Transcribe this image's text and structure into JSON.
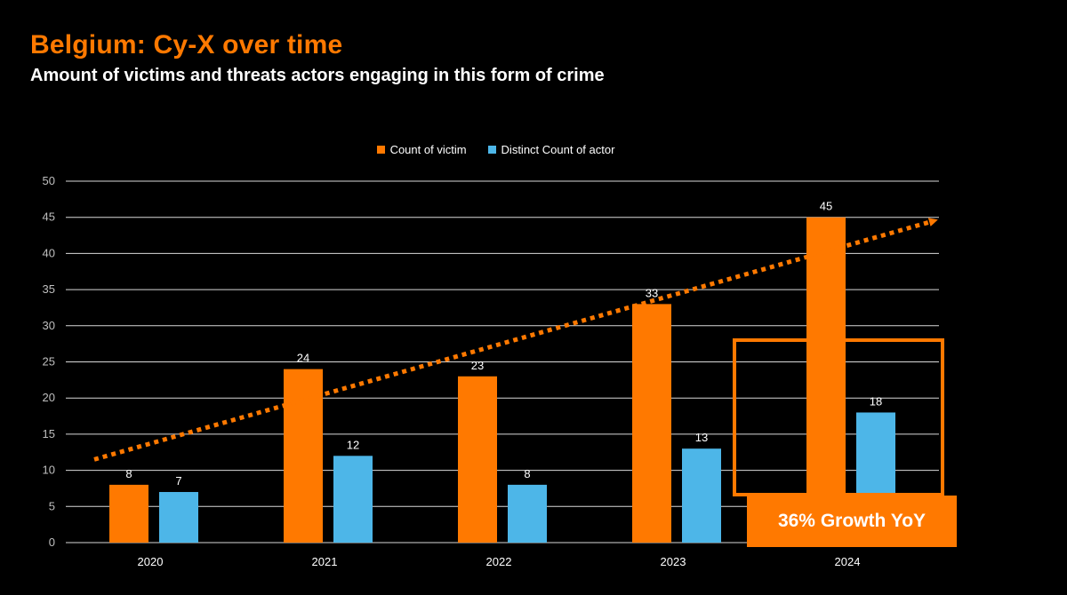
{
  "header": {
    "title": "Belgium: Cy-X over time",
    "subtitle": "Amount of victims and threats actors engaging in this form of crime"
  },
  "colors": {
    "background": "#000000",
    "victim": "#ff7900",
    "actor": "#4db6e8",
    "gridline": "#d9d9d9",
    "trend": "#ff7900"
  },
  "annotation": {
    "growth_label": "36% Growth YoY",
    "highlight_category": "2024"
  },
  "chart_data": {
    "type": "bar",
    "title": "",
    "xlabel": "",
    "ylabel": "",
    "categories": [
      "2020",
      "2021",
      "2022",
      "2023",
      "2024"
    ],
    "series": [
      {
        "name": "Count of victim",
        "color": "#ff7900",
        "values": [
          8,
          24,
          23,
          33,
          45
        ]
      },
      {
        "name": "Distinct Count of actor",
        "color": "#4db6e8",
        "values": [
          7,
          12,
          8,
          13,
          18
        ]
      }
    ],
    "ylim": [
      0,
      50
    ],
    "yticks": [
      0,
      5,
      10,
      15,
      20,
      25,
      30,
      35,
      40,
      45,
      50
    ],
    "grid": true,
    "legend_position": "top-center",
    "data_labels": true,
    "trend_line": {
      "style": "dotted-arrow",
      "from_value": 11.5,
      "to_value": 44.5
    }
  }
}
